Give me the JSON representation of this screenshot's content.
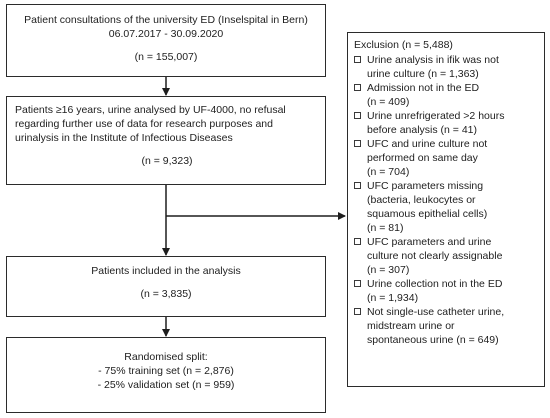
{
  "boxes": {
    "consultations": {
      "line1": "Patient consultations of the university ED (Inselspital in Bern)",
      "line2": "06.07.2017 - 30.09.2020",
      "count": "(n = 155,007)"
    },
    "eligible": {
      "text": "Patients ≥16 years, urine analysed by UF-4000, no refusal regarding further use of data for research purposes and urinalysis in the Institute of Infectious Diseases",
      "count": "(n = 9,323)"
    },
    "included": {
      "text": "Patients included in the analysis",
      "count": "(n = 3,835)"
    },
    "split": {
      "title": "Randomised split:",
      "training": "- 75% training set (n = 2,876)",
      "validation": "- 25% validation set (n = 959)"
    }
  },
  "exclusion": {
    "title": "Exclusion (n = 5,488)",
    "items": [
      "Urine analysis in ifik was not\nurine culture (n = 1,363)",
      "Admission not in the ED\n(n = 409)",
      "Urine unrefrigerated >2 hours\nbefore analysis (n = 41)",
      "UFC and urine culture not\nperformed on same day\n(n = 704)",
      "UFC parameters missing\n(bacteria, leukocytes or\nsquamous epithelial cells)\n(n = 81)",
      "UFC parameters and urine\nculture not clearly assignable\n(n = 307)",
      "Urine collection not in the ED\n(n = 1,934)",
      "Not single-use catheter urine,\nmidstream urine or\nspontaneous urine (n = 649)"
    ]
  }
}
